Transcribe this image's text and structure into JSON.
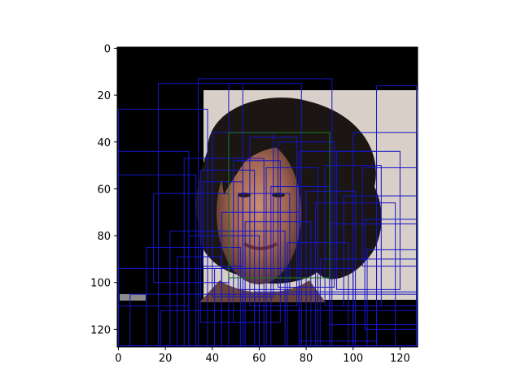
{
  "figure": {
    "description_visible": "matplotlib imshow of a 128x128 face image with many blue bounding boxes and one green box",
    "image_size": [
      128,
      128
    ]
  },
  "chart_data": {
    "type": "scatter",
    "title": "",
    "xlabel": "",
    "ylabel": "",
    "xlim": [
      -0.5,
      127.5
    ],
    "ylim": [
      127.5,
      -0.5
    ],
    "y_inverted": true,
    "grid": false,
    "x_ticks": [
      0,
      20,
      40,
      60,
      80,
      100,
      120
    ],
    "y_ticks": [
      0,
      20,
      40,
      60,
      80,
      100,
      120
    ],
    "x_tick_labels": [
      "0",
      "20",
      "40",
      "60",
      "80",
      "100",
      "120"
    ],
    "y_tick_labels": [
      "0",
      "20",
      "40",
      "60",
      "80",
      "100",
      "120"
    ],
    "colors": {
      "box": "#1515c8",
      "highlight_box": "#1f7a1f"
    },
    "highlight_box": {
      "x0": 47,
      "y0": 36,
      "x1": 90,
      "y1": 98
    },
    "boxes": [
      {
        "x0": 17,
        "y0": 15,
        "x1": 53,
        "y1": 127
      },
      {
        "x0": 34,
        "y0": 13,
        "x1": 91,
        "y1": 127
      },
      {
        "x0": 47,
        "y0": 15,
        "x1": 78,
        "y1": 127
      },
      {
        "x0": 0,
        "y0": 26,
        "x1": 38,
        "y1": 127
      },
      {
        "x0": 0,
        "y0": 44,
        "x1": 30,
        "y1": 110
      },
      {
        "x0": 0,
        "y0": 54,
        "x1": 33,
        "y1": 127
      },
      {
        "x0": 28,
        "y0": 47,
        "x1": 62,
        "y1": 127
      },
      {
        "x0": 35,
        "y0": 52,
        "x1": 58,
        "y1": 117
      },
      {
        "x0": 40,
        "y0": 36,
        "x1": 66,
        "y1": 106
      },
      {
        "x0": 49,
        "y0": 48,
        "x1": 69,
        "y1": 117
      },
      {
        "x0": 56,
        "y0": 38,
        "x1": 76,
        "y1": 110
      },
      {
        "x0": 63,
        "y0": 51,
        "x1": 85,
        "y1": 127
      },
      {
        "x0": 68,
        "y0": 40,
        "x1": 92,
        "y1": 102
      },
      {
        "x0": 77,
        "y0": 44,
        "x1": 110,
        "y1": 125
      },
      {
        "x0": 80,
        "y0": 61,
        "x1": 101,
        "y1": 127
      },
      {
        "x0": 88,
        "y0": 50,
        "x1": 112,
        "y1": 110
      },
      {
        "x0": 93,
        "y0": 44,
        "x1": 120,
        "y1": 103
      },
      {
        "x0": 100,
        "y0": 36,
        "x1": 127,
        "y1": 127
      },
      {
        "x0": 104,
        "y0": 51,
        "x1": 127,
        "y1": 93
      },
      {
        "x0": 110,
        "y0": 16,
        "x1": 127,
        "y1": 127
      },
      {
        "x0": 96,
        "y0": 63,
        "x1": 127,
        "y1": 110
      },
      {
        "x0": 15,
        "y0": 62,
        "x1": 47,
        "y1": 100
      },
      {
        "x0": 12,
        "y0": 85,
        "x1": 52,
        "y1": 127
      },
      {
        "x0": 22,
        "y0": 78,
        "x1": 71,
        "y1": 127
      },
      {
        "x0": 30,
        "y0": 80,
        "x1": 60,
        "y1": 127
      },
      {
        "x0": 44,
        "y0": 70,
        "x1": 77,
        "y1": 127
      },
      {
        "x0": 54,
        "y0": 74,
        "x1": 82,
        "y1": 127
      },
      {
        "x0": 65,
        "y0": 59,
        "x1": 90,
        "y1": 127
      },
      {
        "x0": 72,
        "y0": 83,
        "x1": 98,
        "y1": 127
      },
      {
        "x0": 86,
        "y0": 90,
        "x1": 127,
        "y1": 127
      },
      {
        "x0": 0,
        "y0": 94,
        "x1": 60,
        "y1": 127
      },
      {
        "x0": 18,
        "y0": 112,
        "x1": 127,
        "y1": 127
      },
      {
        "x0": 5,
        "y0": 105,
        "x1": 127,
        "y1": 127
      },
      {
        "x0": 58,
        "y0": 104,
        "x1": 127,
        "y1": 127
      },
      {
        "x0": 41,
        "y0": 94,
        "x1": 100,
        "y1": 127
      },
      {
        "x0": 25,
        "y0": 89,
        "x1": 44,
        "y1": 127
      },
      {
        "x0": 36,
        "y0": 57,
        "x1": 53,
        "y1": 93
      },
      {
        "x0": 51,
        "y0": 62,
        "x1": 73,
        "y1": 103
      },
      {
        "x0": 84,
        "y0": 66,
        "x1": 118,
        "y1": 127
      },
      {
        "x0": 105,
        "y0": 73,
        "x1": 127,
        "y1": 120
      },
      {
        "x0": 106,
        "y0": 86,
        "x1": 127,
        "y1": 127
      },
      {
        "x0": 90,
        "y0": 75,
        "x1": 127,
        "y1": 118
      }
    ]
  }
}
